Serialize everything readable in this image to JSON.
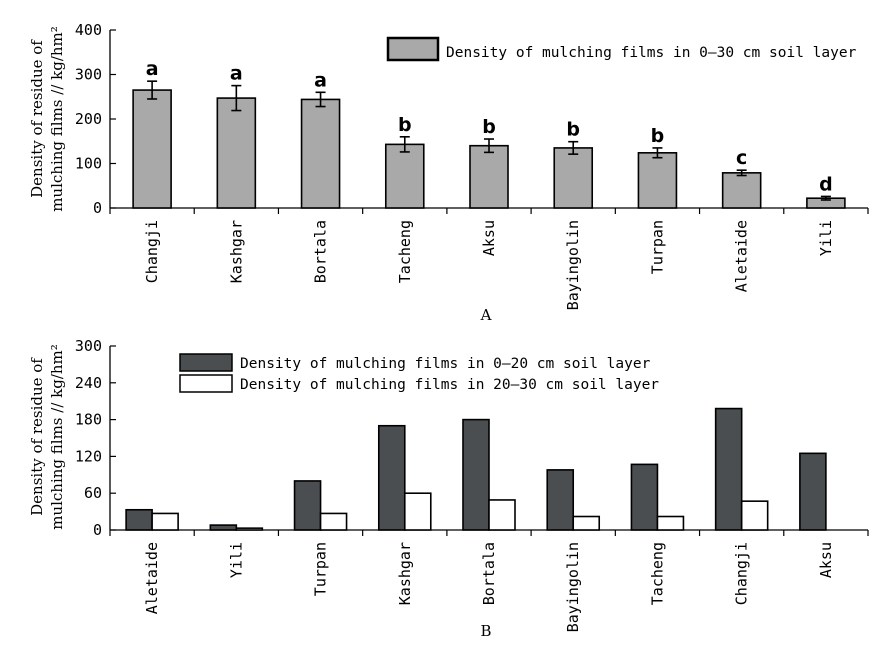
{
  "chart_data": [
    {
      "panel": "A",
      "type": "bar",
      "ylabel": [
        "Density of residue of",
        "mulching films ∕∕ kg/hm²"
      ],
      "ylim": [
        0,
        400
      ],
      "yticks": [
        0,
        100,
        200,
        300,
        400
      ],
      "categories": [
        "Changji",
        "Kashgar",
        "Bortala",
        "Tacheng",
        "Aksu",
        "Bayingolin",
        "Turpan",
        "Aletaide",
        "Yili"
      ],
      "series": [
        {
          "name": "Density of mulching films in 0–30 cm soil layer",
          "color": "#a9a9a9",
          "values": [
            265,
            247,
            244,
            143,
            140,
            135,
            124,
            79,
            22
          ],
          "errors": [
            20,
            28,
            16,
            17,
            15,
            14,
            11,
            6,
            4
          ],
          "significance": [
            "a",
            "a",
            "a",
            "b",
            "b",
            "b",
            "b",
            "c",
            "d"
          ]
        }
      ],
      "grid": false,
      "legend": "top-right"
    },
    {
      "panel": "B",
      "type": "bar",
      "ylabel": [
        "Density of residue of",
        "mulching films ∕∕ kg/hm²"
      ],
      "ylim": [
        0,
        300
      ],
      "yticks": [
        0,
        60,
        120,
        180,
        240,
        300
      ],
      "categories": [
        "Aletaide",
        "Yili",
        "Turpan",
        "Kashgar",
        "Bortala",
        "Bayingolin",
        "Tacheng",
        "Changji",
        "Aksu"
      ],
      "series": [
        {
          "name": "Density of mulching films in 0–20 cm soil layer",
          "color": "#4a4e50",
          "values": [
            33,
            8,
            80,
            170,
            180,
            98,
            107,
            198,
            125
          ]
        },
        {
          "name": "Density of mulching films in 20–30 cm soil layer",
          "color": "#ffffff",
          "values": [
            27,
            3,
            27,
            60,
            49,
            22,
            22,
            47,
            0
          ]
        }
      ],
      "grid": false,
      "legend": "top-left"
    }
  ]
}
